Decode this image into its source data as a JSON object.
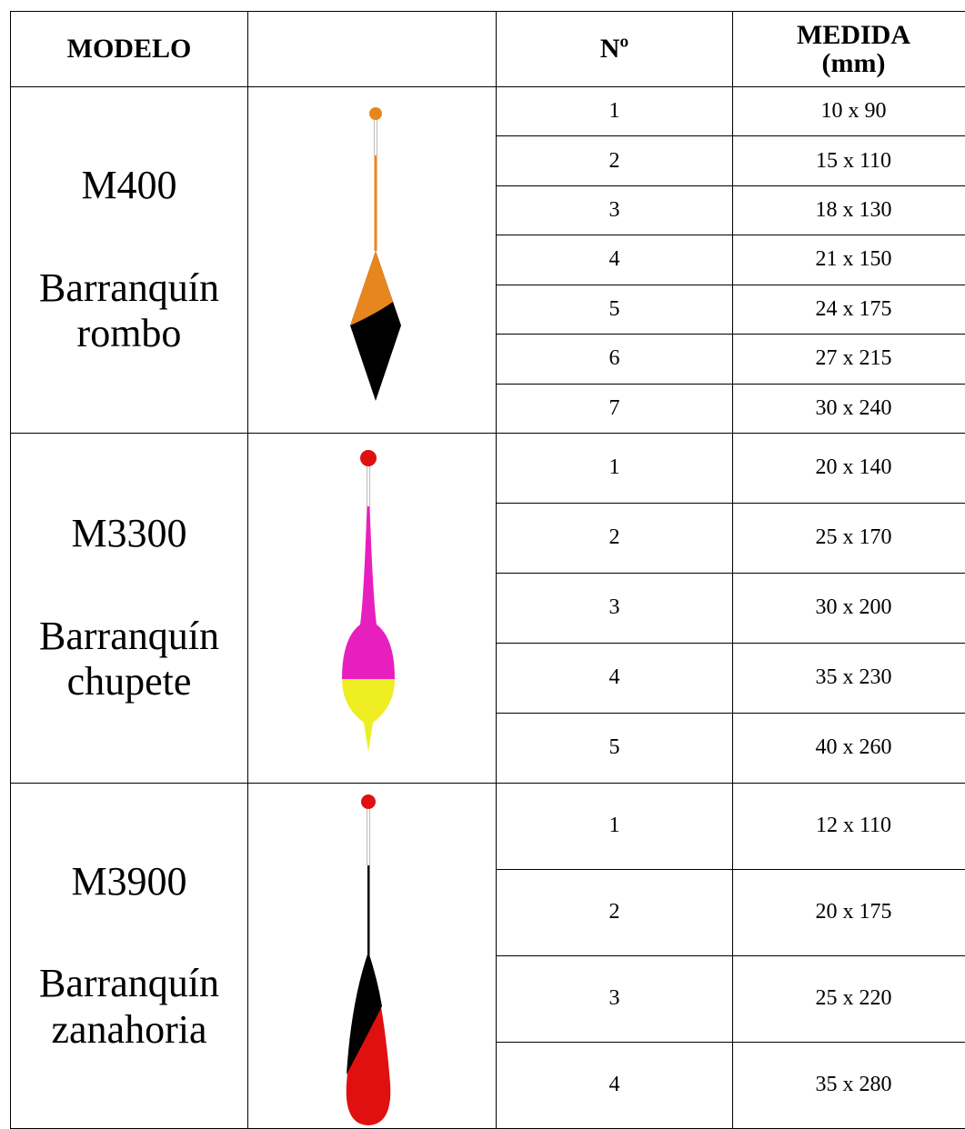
{
  "header": {
    "model": "MODELO",
    "number": "Nº",
    "size": "MEDIDA\n(mm)"
  },
  "groups": [
    {
      "model": "M400",
      "name": "Barranquín rombo",
      "rows": [
        [
          "1",
          "10 x 90"
        ],
        [
          "2",
          "15 x 110"
        ],
        [
          "3",
          "18 x 130"
        ],
        [
          "4",
          "21 x 150"
        ],
        [
          "5",
          "24 x 175"
        ],
        [
          "6",
          "27 x 215"
        ],
        [
          "7",
          "30 x 240"
        ]
      ]
    },
    {
      "model": "M3300",
      "name": "Barranquín chupete",
      "rows": [
        [
          "1",
          "20 x 140"
        ],
        [
          "2",
          "25 x 170"
        ],
        [
          "3",
          "30 x 200"
        ],
        [
          "4",
          "35 x 230"
        ],
        [
          "5",
          "40 x 260"
        ]
      ]
    },
    {
      "model": "M3900",
      "name": "Barranquín zanahoria",
      "rows": [
        [
          "1",
          "12 x 110"
        ],
        [
          "2",
          "20 x 175"
        ],
        [
          "3",
          "25 x 220"
        ],
        [
          "4",
          "35 x 280"
        ]
      ]
    }
  ]
}
